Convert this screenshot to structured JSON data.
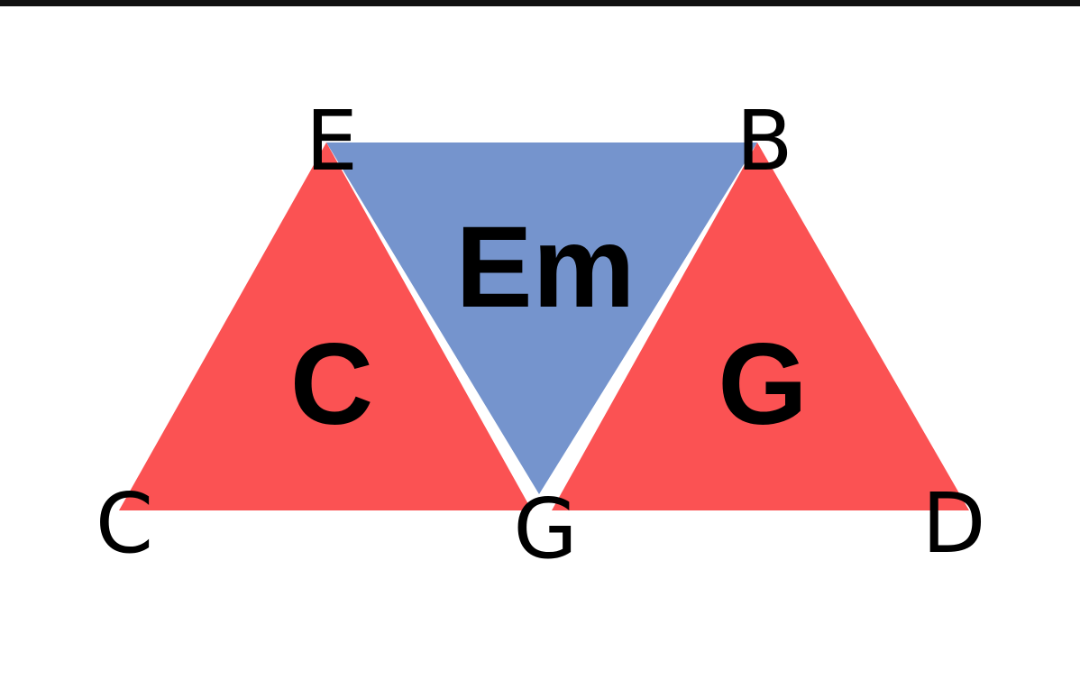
{
  "diagram": {
    "colors": {
      "major_triangle": "#fb5253",
      "minor_triangle": "#7594cd",
      "text": "#000000",
      "background": "#ffffff"
    },
    "notes": {
      "top_left": "E",
      "top_right": "B",
      "bottom_left": "C",
      "bottom_middle": "G",
      "bottom_right": "D"
    },
    "chords": {
      "left": "C",
      "middle": "Em",
      "right": "G"
    }
  }
}
